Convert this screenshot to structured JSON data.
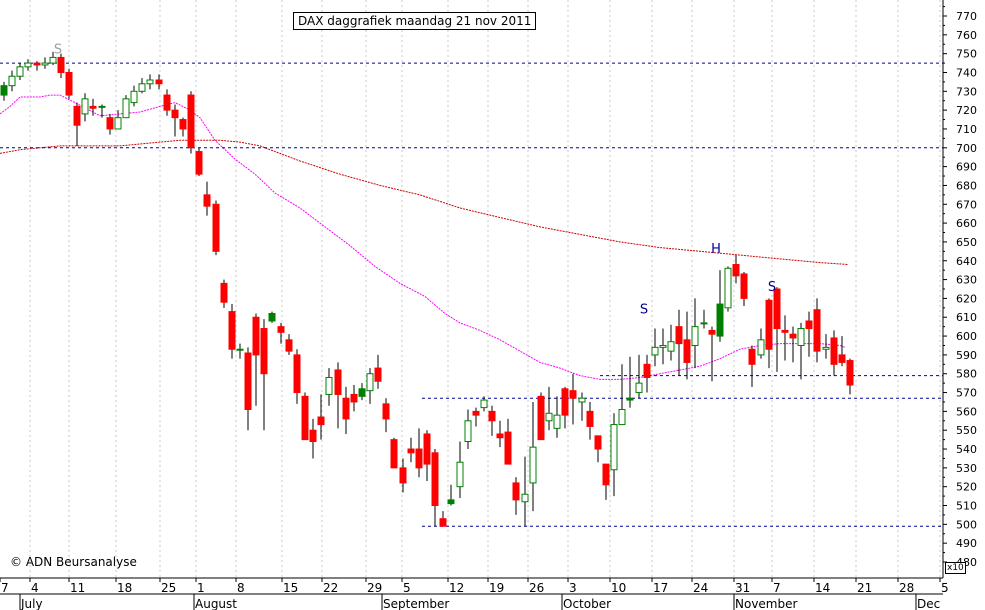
{
  "chart_data": {
    "type": "candlestick",
    "title": "DAX daggrafiek maandag 21 nov 2011",
    "copyright": "© ADN Beursanalyse",
    "y_axis_multiplier": "x10",
    "ylim": [
      478,
      778
    ],
    "y_tick_step": 10,
    "y_ticks": [
      480,
      490,
      500,
      510,
      520,
      530,
      540,
      550,
      560,
      570,
      580,
      590,
      600,
      610,
      620,
      630,
      640,
      650,
      660,
      670,
      680,
      690,
      700,
      710,
      720,
      730,
      740,
      750,
      760,
      770
    ],
    "x_tick_labels": [
      "7",
      "4",
      "11",
      "18",
      "25",
      "1",
      "8",
      "15",
      "22",
      "29",
      "5",
      "12",
      "19",
      "26",
      "3",
      "10",
      "17",
      "24",
      "31",
      "7",
      "14",
      "21",
      "28",
      "5"
    ],
    "month_labels": [
      "July",
      "August",
      "September",
      "October",
      "November",
      "Dec"
    ],
    "colors": {
      "up": "#008000",
      "down": "#ff0000",
      "neutral": "#000000",
      "ma_short": "#ff00ff",
      "ma_long": "#cc0000",
      "support": "#000099",
      "annotation": "#000099"
    },
    "candles": [
      [
        728,
        733,
        735,
        725
      ],
      [
        733,
        738,
        741,
        730
      ],
      [
        738,
        743,
        745,
        736
      ],
      [
        743,
        745,
        747,
        741
      ],
      [
        745,
        744,
        746,
        741
      ],
      [
        744,
        745,
        748,
        742
      ],
      [
        745,
        748,
        751,
        744
      ],
      [
        748,
        740,
        750,
        737
      ],
      [
        740,
        728,
        742,
        726
      ],
      [
        722,
        712,
        724,
        701
      ],
      [
        718,
        726,
        729,
        714
      ],
      [
        722,
        721,
        726,
        717
      ],
      [
        722,
        722,
        723,
        716
      ],
      [
        716,
        710,
        718,
        707
      ],
      [
        710,
        716,
        720,
        712
      ],
      [
        716,
        726,
        728,
        716
      ],
      [
        724,
        730,
        733,
        722
      ],
      [
        730,
        734,
        737,
        729
      ],
      [
        734,
        736,
        739,
        731
      ],
      [
        736,
        734,
        739,
        731
      ],
      [
        728,
        720,
        731,
        717
      ],
      [
        720,
        716,
        723,
        706
      ],
      [
        715,
        710,
        716,
        706
      ],
      [
        728,
        700,
        730,
        697
      ],
      [
        698,
        686,
        700,
        685
      ],
      [
        675,
        669,
        682,
        664
      ],
      [
        670,
        645,
        672,
        643
      ],
      [
        628,
        618,
        630,
        615
      ],
      [
        613,
        593,
        617,
        588
      ],
      [
        593,
        593,
        596,
        588
      ],
      [
        591,
        561,
        594,
        550
      ],
      [
        610,
        590,
        612,
        563
      ],
      [
        604,
        580,
        609,
        550
      ],
      [
        608,
        612,
        613,
        607
      ],
      [
        605,
        602,
        607,
        596
      ],
      [
        598,
        592,
        601,
        590
      ],
      [
        590,
        570,
        593,
        564
      ],
      [
        568,
        545,
        570,
        545
      ],
      [
        550,
        544,
        556,
        535
      ],
      [
        557,
        553,
        569,
        545
      ],
      [
        569,
        578,
        583,
        563
      ],
      [
        582,
        569,
        586,
        551
      ],
      [
        567,
        556,
        573,
        548
      ],
      [
        569,
        565,
        574,
        560
      ],
      [
        568,
        572,
        575,
        566
      ],
      [
        571,
        580,
        583,
        564
      ],
      [
        583,
        576,
        590,
        572
      ],
      [
        564,
        556,
        567,
        549
      ],
      [
        545,
        530,
        546,
        530
      ],
      [
        530,
        522,
        535,
        517
      ],
      [
        540,
        538,
        546,
        533
      ],
      [
        540,
        530,
        551,
        525
      ],
      [
        548,
        532,
        550,
        523
      ],
      [
        538,
        510,
        540,
        499
      ],
      [
        503,
        499,
        507,
        499
      ],
      [
        511,
        513,
        521,
        510
      ],
      [
        520,
        533,
        544,
        514
      ],
      [
        544,
        555,
        561,
        540
      ],
      [
        560,
        558,
        562,
        552
      ],
      [
        562,
        566,
        568,
        560
      ],
      [
        560,
        555,
        563,
        547
      ],
      [
        548,
        546,
        555,
        541
      ],
      [
        549,
        532,
        556,
        533
      ],
      [
        522,
        513,
        525,
        505
      ],
      [
        512,
        516,
        536,
        499
      ],
      [
        522,
        541,
        565,
        507
      ],
      [
        568,
        545,
        570,
        546
      ],
      [
        555,
        559,
        573,
        550
      ],
      [
        551,
        558,
        568,
        546
      ],
      [
        572,
        558,
        573,
        551
      ],
      [
        571,
        567,
        580,
        553
      ],
      [
        565,
        567,
        570,
        555
      ],
      [
        560,
        552,
        565,
        545
      ],
      [
        547,
        540,
        546,
        533
      ],
      [
        532,
        521,
        530,
        513
      ],
      [
        529,
        553,
        559,
        515
      ],
      [
        553,
        561,
        585,
        560
      ],
      [
        566,
        567,
        589,
        562
      ],
      [
        570,
        575,
        590,
        567
      ],
      [
        585,
        578,
        590,
        570
      ],
      [
        590,
        594,
        604,
        584
      ],
      [
        594,
        595,
        604,
        585
      ],
      [
        592,
        597,
        606,
        587
      ],
      [
        605,
        596,
        614,
        579
      ],
      [
        598,
        586,
        613,
        577
      ],
      [
        595,
        605,
        620,
        583
      ],
      [
        607,
        607,
        614,
        604
      ],
      [
        603,
        601,
        605,
        576
      ],
      [
        600,
        617,
        635,
        597
      ],
      [
        615,
        636,
        637,
        613
      ],
      [
        638,
        632,
        643,
        628
      ],
      [
        633,
        620,
        634,
        616
      ],
      [
        593,
        585,
        595,
        573
      ],
      [
        590,
        598,
        604,
        588
      ],
      [
        619,
        593,
        620,
        583
      ],
      [
        625,
        604,
        626,
        581
      ],
      [
        603,
        602,
        611,
        587
      ],
      [
        601,
        599,
        605,
        586
      ],
      [
        595,
        604,
        607,
        577
      ],
      [
        608,
        604,
        613,
        589
      ],
      [
        614,
        592,
        620,
        586
      ],
      [
        593,
        594,
        601,
        588
      ],
      [
        599,
        585,
        603,
        579
      ],
      [
        590,
        586,
        600,
        584
      ],
      [
        587,
        574,
        588,
        569
      ]
    ],
    "ma_short": [
      [
        0,
        718
      ],
      [
        10,
        722
      ],
      [
        20,
        727
      ],
      [
        30,
        727
      ],
      [
        40,
        727
      ],
      [
        50,
        728
      ],
      [
        60,
        728
      ],
      [
        75,
        724
      ],
      [
        100,
        717
      ],
      [
        120,
        718
      ],
      [
        140,
        719
      ],
      [
        160,
        722
      ],
      [
        175,
        724
      ],
      [
        190,
        720
      ],
      [
        200,
        716
      ],
      [
        215,
        704
      ],
      [
        235,
        694
      ],
      [
        255,
        686
      ],
      [
        275,
        676
      ],
      [
        300,
        668
      ],
      [
        325,
        658
      ],
      [
        350,
        648
      ],
      [
        375,
        637
      ],
      [
        400,
        628
      ],
      [
        425,
        621
      ],
      [
        445,
        612
      ],
      [
        460,
        607
      ],
      [
        480,
        603
      ],
      [
        500,
        598
      ],
      [
        520,
        592
      ],
      [
        540,
        586
      ],
      [
        560,
        583
      ],
      [
        580,
        579
      ],
      [
        600,
        577
      ],
      [
        620,
        577
      ],
      [
        640,
        578
      ],
      [
        660,
        580
      ],
      [
        680,
        582
      ],
      [
        700,
        584
      ],
      [
        720,
        588
      ],
      [
        740,
        593
      ],
      [
        760,
        595
      ],
      [
        780,
        596
      ],
      [
        800,
        596
      ],
      [
        820,
        596
      ],
      [
        840,
        595
      ],
      [
        845,
        594
      ]
    ],
    "ma_long": [
      [
        0,
        697
      ],
      [
        20,
        699
      ],
      [
        40,
        700
      ],
      [
        60,
        701
      ],
      [
        80,
        701
      ],
      [
        100,
        701
      ],
      [
        120,
        701
      ],
      [
        140,
        702
      ],
      [
        160,
        703
      ],
      [
        180,
        704
      ],
      [
        200,
        704
      ],
      [
        220,
        704
      ],
      [
        240,
        703
      ],
      [
        260,
        701
      ],
      [
        280,
        697
      ],
      [
        300,
        693
      ],
      [
        340,
        686
      ],
      [
        380,
        680
      ],
      [
        420,
        675
      ],
      [
        460,
        668
      ],
      [
        500,
        663
      ],
      [
        540,
        658
      ],
      [
        580,
        654
      ],
      [
        620,
        650
      ],
      [
        660,
        647
      ],
      [
        700,
        645
      ],
      [
        740,
        643
      ],
      [
        780,
        641
      ],
      [
        820,
        639
      ],
      [
        848,
        638
      ]
    ],
    "support_lines": [
      {
        "value": 745,
        "x0": 0,
        "x1": 943
      },
      {
        "value": 700,
        "x0": 0,
        "x1": 943
      },
      {
        "value": 579,
        "x0": 600,
        "x1": 943
      },
      {
        "value": 567,
        "x0": 422,
        "x1": 943
      },
      {
        "value": 499,
        "x0": 422,
        "x1": 943
      }
    ],
    "annotations": [
      {
        "text": "S",
        "x": 58,
        "value": 750,
        "color": "#a0a0a0"
      },
      {
        "text": "S",
        "x": 644,
        "value": 612,
        "color": "#000099"
      },
      {
        "text": "H",
        "x": 716,
        "value": 644,
        "color": "#000099"
      },
      {
        "text": "S",
        "x": 772,
        "value": 624,
        "color": "#000099"
      }
    ]
  }
}
